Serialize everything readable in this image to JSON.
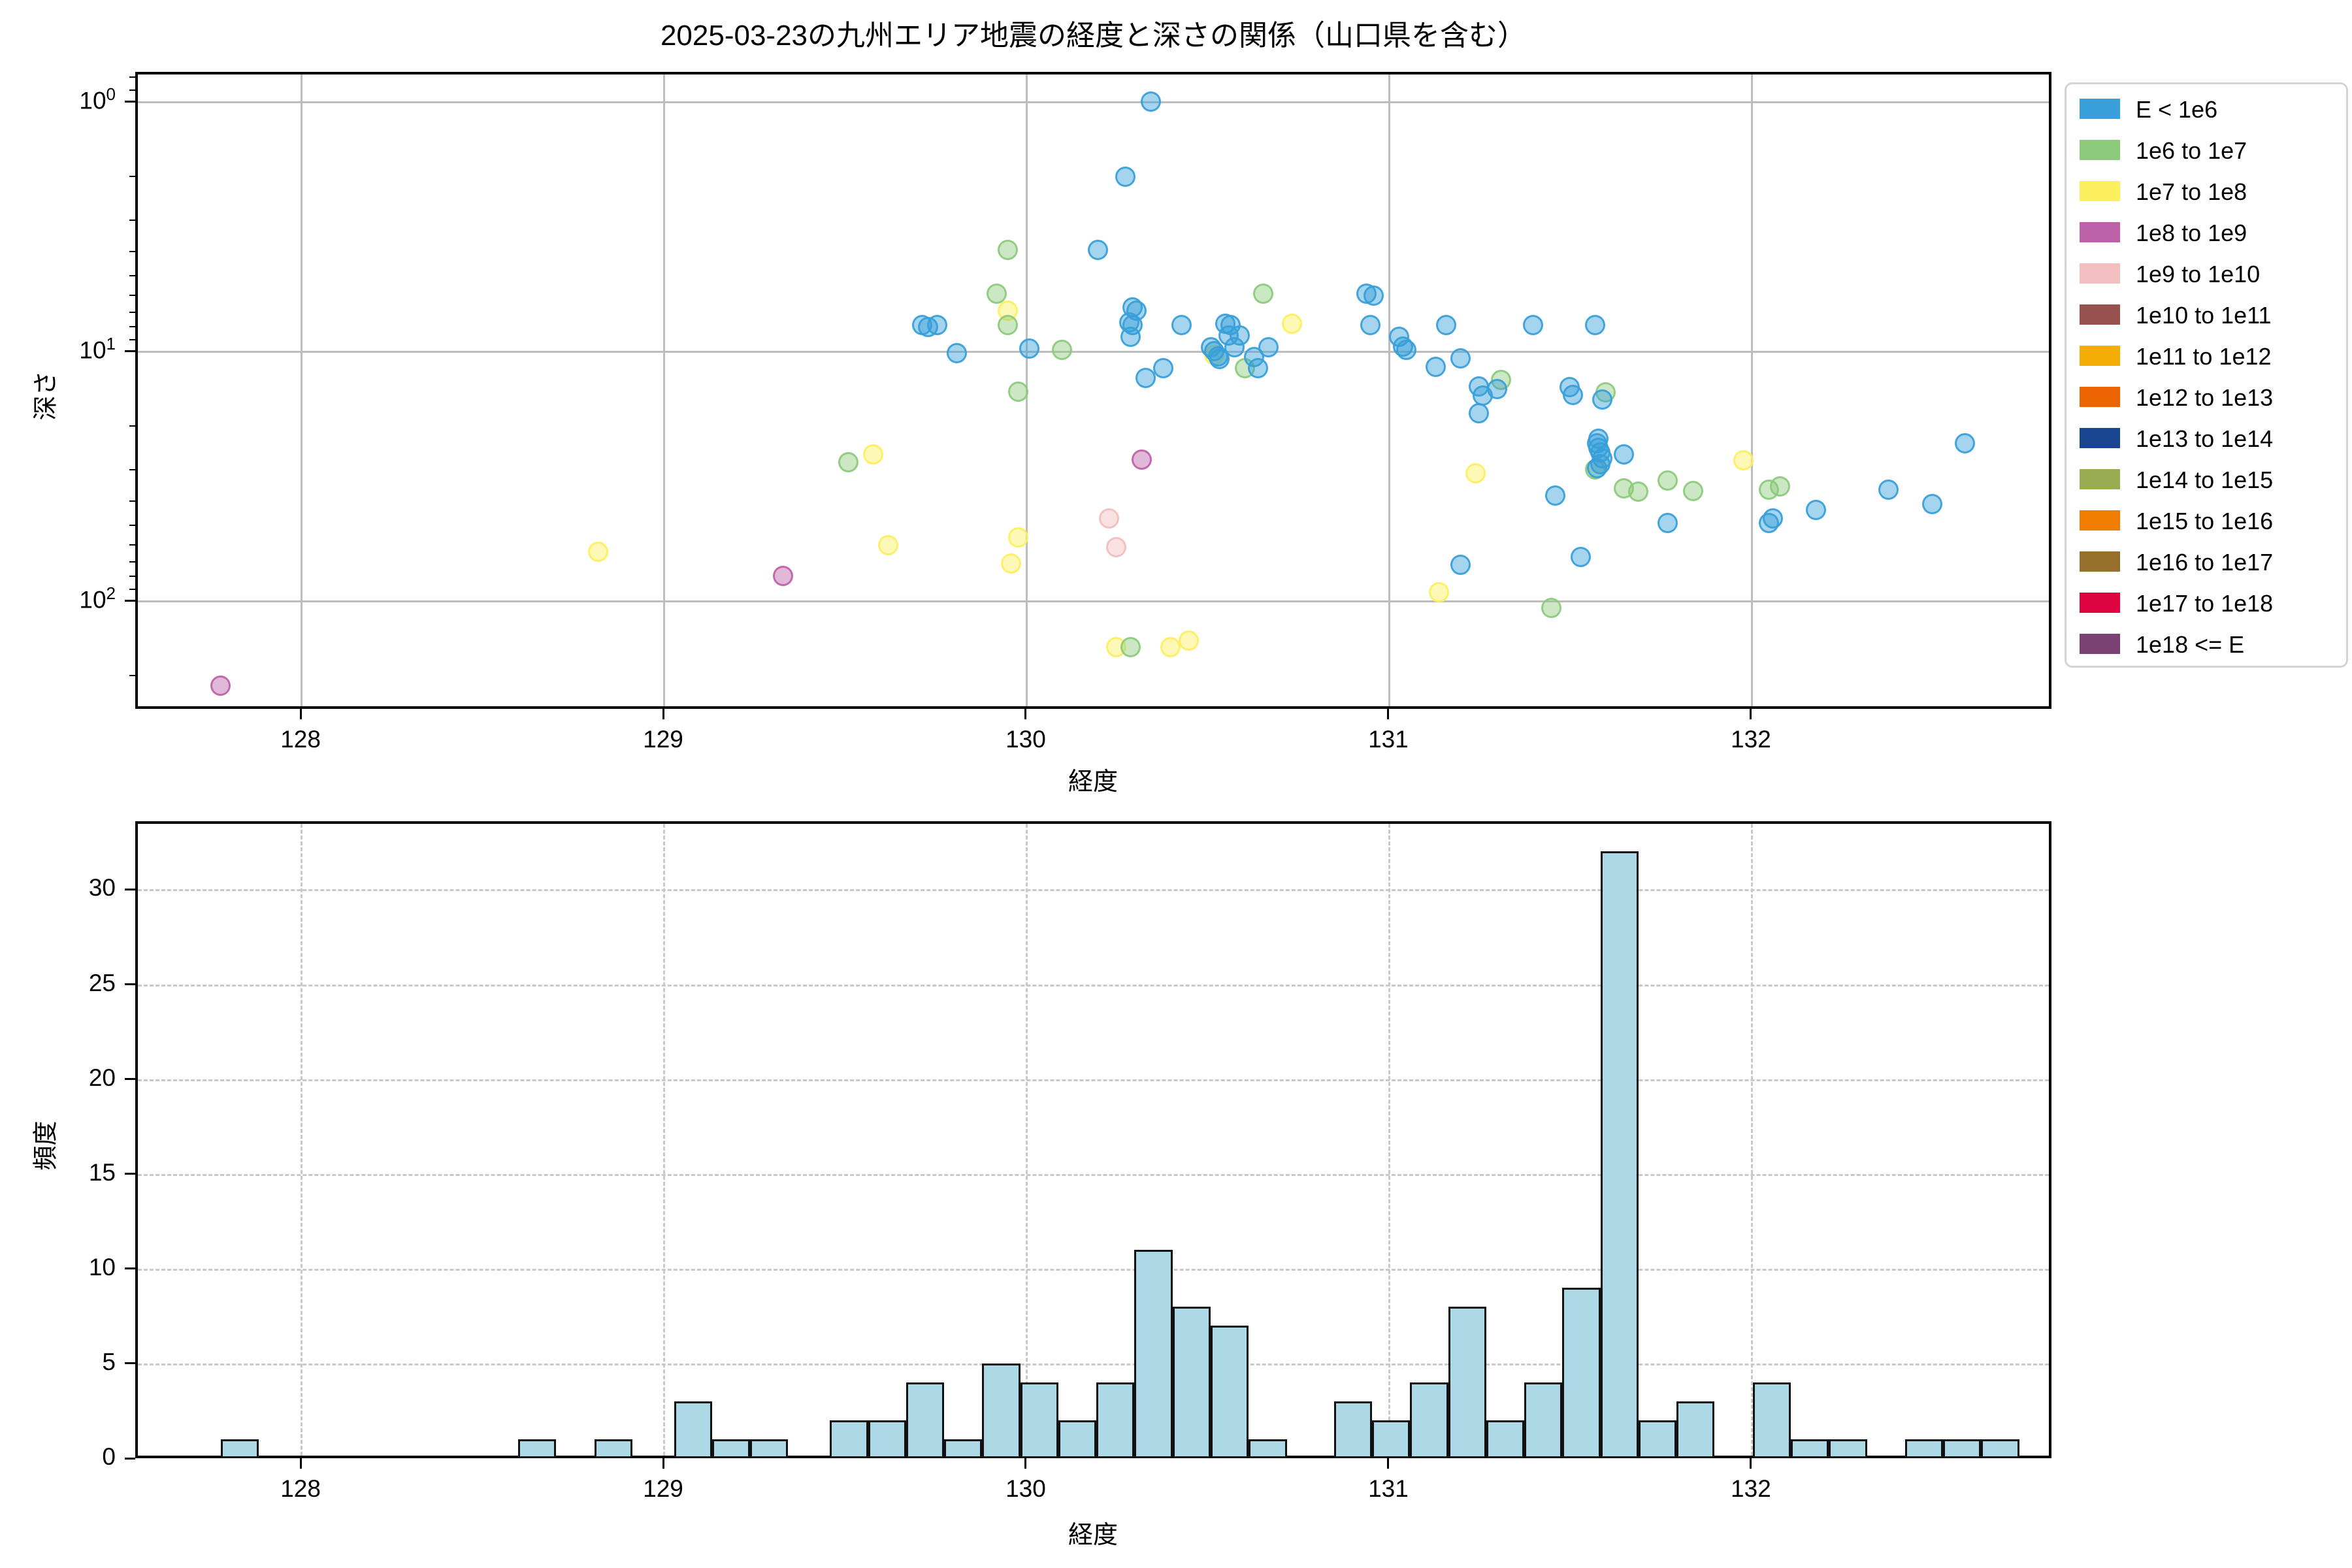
{
  "title": "2025-03-23の九州エリア地震の経度と深さの関係（山口県を含む）",
  "chart_data": [
    {
      "type": "scatter",
      "title": "2025-03-23の九州エリア地震の経度と深さの関係（山口県を含む）",
      "xlabel": "経度",
      "ylabel": "深さ",
      "xlim": [
        127.544,
        132.829
      ],
      "xticks": [
        128,
        129,
        130,
        131,
        132
      ],
      "ytick_labels": [
        "10^0",
        "10^1",
        "10^2"
      ],
      "ylim_depth": [
        0.762,
        272
      ],
      "y_axis": "log, inverted (depth increases downward)",
      "grid": "solid gray, major only",
      "legend_position": "outside upper right",
      "legend_entries": [
        {
          "label": "E < 1e6",
          "color": "#379fd9"
        },
        {
          "label": "1e6 to 1e7",
          "color": "#8dca7c"
        },
        {
          "label": "1e7 to 1e8",
          "color": "#fcef5e"
        },
        {
          "label": "1e8 to 1e9",
          "color": "#bd62a8"
        },
        {
          "label": "1e9 to 1e10",
          "color": "#f3bec0"
        },
        {
          "label": "1e10 to 1e11",
          "color": "#96504e"
        },
        {
          "label": "1e11 to 1e12",
          "color": "#f5ad07"
        },
        {
          "label": "1e12 to 1e13",
          "color": "#ec6302"
        },
        {
          "label": "1e13 to 1e14",
          "color": "#1a4590"
        },
        {
          "label": "1e14 to 1e15",
          "color": "#9aac52"
        },
        {
          "label": "1e15 to 1e16",
          "color": "#f07c00"
        },
        {
          "label": "1e16 to 1e17",
          "color": "#96702b"
        },
        {
          "label": "1e17 to 1e18",
          "color": "#dd0340"
        },
        {
          "label": "1e18 <= E",
          "color": "#7a4173"
        }
      ],
      "points_format": "[longitude, depth_km, legend_index]",
      "points": [
        [
          127.78,
          220,
          3
        ],
        [
          129.33,
          80,
          3
        ],
        [
          130.32,
          27.3,
          3
        ],
        [
          130.23,
          47,
          4
        ],
        [
          130.25,
          61,
          4
        ],
        [
          128.82,
          64,
          2
        ],
        [
          129.58,
          26,
          2
        ],
        [
          129.62,
          60,
          2
        ],
        [
          129.95,
          6.9,
          2
        ],
        [
          129.96,
          71,
          2
        ],
        [
          129.98,
          56,
          2
        ],
        [
          130.25,
          154,
          2
        ],
        [
          130.4,
          154,
          2
        ],
        [
          130.45,
          145,
          2
        ],
        [
          130.52,
          10.4,
          2
        ],
        [
          130.735,
          7.8,
          2
        ],
        [
          131.14,
          93,
          2
        ],
        [
          131.24,
          31,
          2
        ],
        [
          131.98,
          27.5,
          2
        ],
        [
          129.51,
          28,
          1
        ],
        [
          129.92,
          5.9,
          1
        ],
        [
          129.95,
          3.95,
          1
        ],
        [
          129.95,
          7.9,
          1
        ],
        [
          129.98,
          14.6,
          1
        ],
        [
          130.1,
          9.9,
          1
        ],
        [
          130.29,
          154,
          1
        ],
        [
          130.605,
          11.7,
          1
        ],
        [
          130.655,
          5.9,
          1
        ],
        [
          131.31,
          13.1,
          1
        ],
        [
          131.45,
          107,
          1
        ],
        [
          131.6,
          14.7,
          1
        ],
        [
          131.57,
          29.8,
          1
        ],
        [
          131.65,
          35.6,
          1
        ],
        [
          131.69,
          36.7,
          1
        ],
        [
          131.77,
          33,
          1
        ],
        [
          131.84,
          36.5,
          1
        ],
        [
          132.05,
          36,
          1
        ],
        [
          132.08,
          35,
          1
        ],
        [
          129.715,
          7.9,
          0
        ],
        [
          129.73,
          8.0,
          0
        ],
        [
          129.755,
          7.9,
          0
        ],
        [
          129.81,
          10.2,
          0
        ],
        [
          130.01,
          9.8,
          0
        ],
        [
          130.2,
          3.95,
          0
        ],
        [
          130.275,
          2.0,
          0
        ],
        [
          130.345,
          1.0,
          0
        ],
        [
          130.285,
          7.7,
          0
        ],
        [
          130.295,
          7.9,
          0
        ],
        [
          130.295,
          6.7,
          0
        ],
        [
          130.305,
          6.9,
          0
        ],
        [
          130.29,
          8.8,
          0
        ],
        [
          130.33,
          12.8,
          0
        ],
        [
          130.38,
          11.7,
          0
        ],
        [
          130.43,
          7.9,
          0
        ],
        [
          130.51,
          9.7,
          0
        ],
        [
          130.52,
          10.0,
          0
        ],
        [
          130.53,
          10.5,
          0
        ],
        [
          130.535,
          10.8,
          0
        ],
        [
          130.55,
          7.8,
          0
        ],
        [
          130.565,
          7.9,
          0
        ],
        [
          130.56,
          8.7,
          0
        ],
        [
          130.59,
          8.7,
          0
        ],
        [
          130.575,
          9.7,
          0
        ],
        [
          130.63,
          10.6,
          0
        ],
        [
          130.64,
          11.7,
          0
        ],
        [
          130.67,
          9.7,
          0
        ],
        [
          130.94,
          5.9,
          0
        ],
        [
          130.96,
          6.0,
          0
        ],
        [
          130.95,
          7.9,
          0
        ],
        [
          131.03,
          8.8,
          0
        ],
        [
          131.04,
          9.6,
          0
        ],
        [
          131.05,
          9.9,
          0
        ],
        [
          131.13,
          11.6,
          0
        ],
        [
          131.16,
          7.9,
          0
        ],
        [
          131.2,
          10.7,
          0
        ],
        [
          131.2,
          72,
          0
        ],
        [
          131.25,
          17.8,
          0
        ],
        [
          131.25,
          13.9,
          0
        ],
        [
          131.26,
          15.1,
          0
        ],
        [
          131.3,
          14.2,
          0
        ],
        [
          131.4,
          7.9,
          0
        ],
        [
          131.46,
          38,
          0
        ],
        [
          131.5,
          14.0,
          0
        ],
        [
          131.51,
          15.0,
          0
        ],
        [
          131.53,
          67,
          0
        ],
        [
          131.57,
          7.9,
          0
        ],
        [
          131.59,
          15.7,
          0
        ],
        [
          131.575,
          23.5,
          0
        ],
        [
          131.58,
          24.5,
          0
        ],
        [
          131.585,
          25.5,
          0
        ],
        [
          131.59,
          27,
          0
        ],
        [
          131.585,
          28.5,
          0
        ],
        [
          131.575,
          29.5,
          0
        ],
        [
          131.58,
          22.5,
          0
        ],
        [
          131.65,
          26,
          0
        ],
        [
          131.77,
          49,
          0
        ],
        [
          132.05,
          49,
          0
        ],
        [
          132.06,
          47,
          0
        ],
        [
          132.18,
          43.5,
          0
        ],
        [
          132.38,
          36,
          0
        ],
        [
          132.5,
          41,
          0
        ],
        [
          132.59,
          23.5,
          0
        ]
      ]
    },
    {
      "type": "bar",
      "title": "",
      "xlabel": "経度",
      "ylabel": "頻度",
      "xlim": [
        127.544,
        132.829
      ],
      "xticks": [
        128,
        129,
        130,
        131,
        132
      ],
      "yticks": [
        0,
        5,
        10,
        15,
        20,
        25,
        30
      ],
      "ylim": [
        0,
        33.6
      ],
      "grid": "dashed gray",
      "bar_color": "#add9e6",
      "bar_edge_color": "#111111",
      "bin_width": 0.105,
      "bars_format": "[bin_left_longitude, frequency]",
      "bars": [
        [
          127.78,
          1
        ],
        [
          128.6,
          1
        ],
        [
          128.81,
          1
        ],
        [
          129.03,
          3
        ],
        [
          129.135,
          1
        ],
        [
          129.24,
          1
        ],
        [
          129.46,
          2
        ],
        [
          129.565,
          2
        ],
        [
          129.67,
          4
        ],
        [
          129.775,
          1
        ],
        [
          129.88,
          5
        ],
        [
          129.985,
          4
        ],
        [
          130.09,
          2
        ],
        [
          130.195,
          4
        ],
        [
          130.3,
          11
        ],
        [
          130.405,
          8
        ],
        [
          130.51,
          7
        ],
        [
          130.615,
          1
        ],
        [
          130.85,
          3
        ],
        [
          130.955,
          2
        ],
        [
          131.06,
          4
        ],
        [
          131.165,
          8
        ],
        [
          131.27,
          2
        ],
        [
          131.375,
          4
        ],
        [
          131.48,
          9
        ],
        [
          131.585,
          32
        ],
        [
          131.69,
          2
        ],
        [
          131.795,
          3
        ],
        [
          132.005,
          4
        ],
        [
          132.11,
          1
        ],
        [
          132.215,
          1
        ],
        [
          132.425,
          1
        ],
        [
          132.53,
          1
        ],
        [
          132.635,
          1
        ]
      ]
    }
  ]
}
